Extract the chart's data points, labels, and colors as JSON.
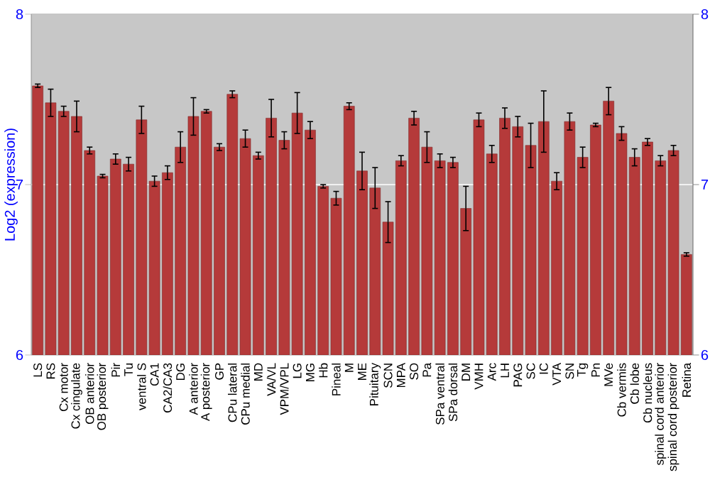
{
  "chart_data": {
    "type": "bar",
    "ylabel": "Log2 (expression)",
    "categories": [
      "LS",
      "RS",
      "Cx motor",
      "Cx cingulate",
      "OB anterior",
      "OB posterior",
      "Pir",
      "Tu",
      "ventral S",
      "CA1",
      "CA2/CA3",
      "DG",
      "A anterior",
      "A posterior",
      "GP",
      "CPu lateral",
      "CPu medial",
      "MD",
      "VA/VL",
      "VPM/VPL",
      "LG",
      "MG",
      "Hb",
      "Pineal",
      "M",
      "ME",
      "Pituitary",
      "SCN",
      "MPA",
      "SO",
      "Pa",
      "SPa ventral",
      "SPa dorsal",
      "DM",
      "VMH",
      "Arc",
      "LH",
      "PAG",
      "SC",
      "IC",
      "VTA",
      "SN",
      "Tg",
      "Pn",
      "MVe",
      "Cb vermis",
      "Cb lobe",
      "Cb nucleus",
      "spinal cord anterior",
      "spinal cord posterior",
      "Retina"
    ],
    "values": [
      7.58,
      7.48,
      7.43,
      7.4,
      7.2,
      7.05,
      7.15,
      7.12,
      7.38,
      7.02,
      7.07,
      7.22,
      7.4,
      7.43,
      7.22,
      7.53,
      7.27,
      7.17,
      7.39,
      7.26,
      7.42,
      7.32,
      6.99,
      6.92,
      7.46,
      7.08,
      6.98,
      6.78,
      7.14,
      7.39,
      7.22,
      7.14,
      7.13,
      6.86,
      7.38,
      7.18,
      7.39,
      7.34,
      7.23,
      7.37,
      7.02,
      7.37,
      7.16,
      7.35,
      7.49,
      7.3,
      7.16,
      7.25,
      7.14,
      7.2,
      6.59
    ],
    "errors": [
      0.01,
      0.08,
      0.03,
      0.09,
      0.02,
      0.01,
      0.03,
      0.04,
      0.08,
      0.03,
      0.04,
      0.09,
      0.11,
      0.01,
      0.02,
      0.02,
      0.05,
      0.02,
      0.11,
      0.05,
      0.12,
      0.05,
      0.01,
      0.04,
      0.02,
      0.11,
      0.12,
      0.12,
      0.03,
      0.04,
      0.09,
      0.04,
      0.03,
      0.13,
      0.04,
      0.05,
      0.06,
      0.06,
      0.13,
      0.18,
      0.05,
      0.05,
      0.06,
      0.01,
      0.08,
      0.04,
      0.05,
      0.02,
      0.03,
      0.03,
      0.01
    ],
    "color": "#b53a3a",
    "ylim": [
      6,
      8
    ],
    "yticks": [
      6,
      7,
      8
    ],
    "y2lim": [
      6,
      8
    ],
    "y2ticks": [
      6,
      7,
      8
    ],
    "grid": "y"
  }
}
